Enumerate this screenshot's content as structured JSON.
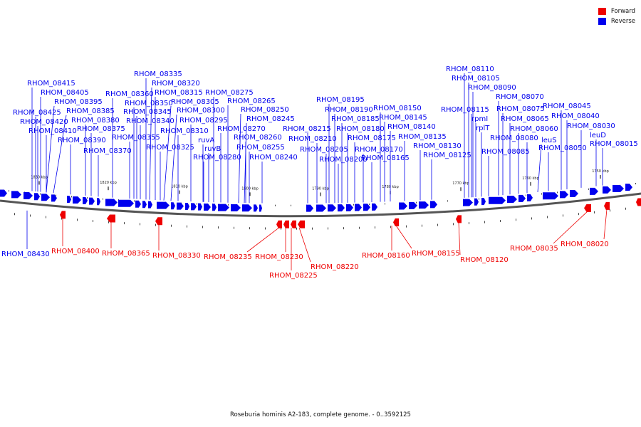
{
  "caption": "Roseburia hominis A2-183, complete genome. - 0..3592125",
  "legend": [
    {
      "label": "Forward",
      "color": "#ee0000"
    },
    {
      "label": "Reverse",
      "color": "#0000ee"
    }
  ],
  "colors": {
    "forward": "#ee0000",
    "reverse": "#0000ee",
    "backbone": "#555555"
  },
  "ticks": [
    "1830 kbp",
    "1820 kbp",
    "1810 kbp",
    "1800 kbp",
    "1790 kbp",
    "1780 kbp",
    "1770 kbp",
    "1760 kbp",
    "1750 kbp"
  ],
  "reverse_labels": [
    "RHOM_08415",
    "RHOM_08405",
    "RHOM_08395",
    "RHOM_08385",
    "RHOM_08425",
    "RHOM_08420",
    "RHOM_08410",
    "RHOM_08390",
    "RHOM_08380",
    "RHOM_08375",
    "RHOM_08370",
    "RHOM_08360",
    "RHOM_08355",
    "RHOM_08350",
    "RHOM_08345",
    "RHOM_08340",
    "RHOM_08335",
    "RHOM_08320",
    "RHOM_08315",
    "RHOM_08305",
    "RHOM_08300",
    "RHOM_08310",
    "RHOM_08325",
    "RHOM_08295",
    "ruvA",
    "ruvB",
    "RHOM_08280",
    "RHOM_08275",
    "RHOM_08265",
    "RHOM_08250",
    "RHOM_08245",
    "RHOM_08270",
    "RHOM_08260",
    "RHOM_08255",
    "RHOM_08240",
    "RHOM_08215",
    "RHOM_08210",
    "RHOM_08205",
    "RHOM_08200",
    "RHOM_08195",
    "RHOM_08190",
    "RHOM_08185",
    "RHOM_08180",
    "RHOM_08175",
    "RHOM_08170",
    "RHOM_08165",
    "RHOM_08150",
    "RHOM_08145",
    "RHOM_08140",
    "RHOM_08135",
    "RHOM_08130",
    "RHOM_08125",
    "RHOM_08110",
    "RHOM_08105",
    "RHOM_08090",
    "RHOM_08115",
    "rpmI",
    "rplT",
    "RHOM_08085",
    "RHOM_08070",
    "RHOM_08075",
    "RHOM_08065",
    "RHOM_08060",
    "RHOM_08080",
    "leuS",
    "RHOM_08050",
    "RHOM_08045",
    "RHOM_08040",
    "RHOM_08030",
    "leuD",
    "RHOM_08015",
    "RHOM_08430"
  ],
  "forward_labels": [
    "RHOM_08400",
    "RHOM_08365",
    "RHOM_08330",
    "RHOM_08235",
    "RHOM_08230",
    "RHOM_08225",
    "RHOM_08220",
    "RHOM_08160",
    "RHOM_08155",
    "RHOM_08120",
    "RHOM_08035",
    "RHOM_08020"
  ]
}
